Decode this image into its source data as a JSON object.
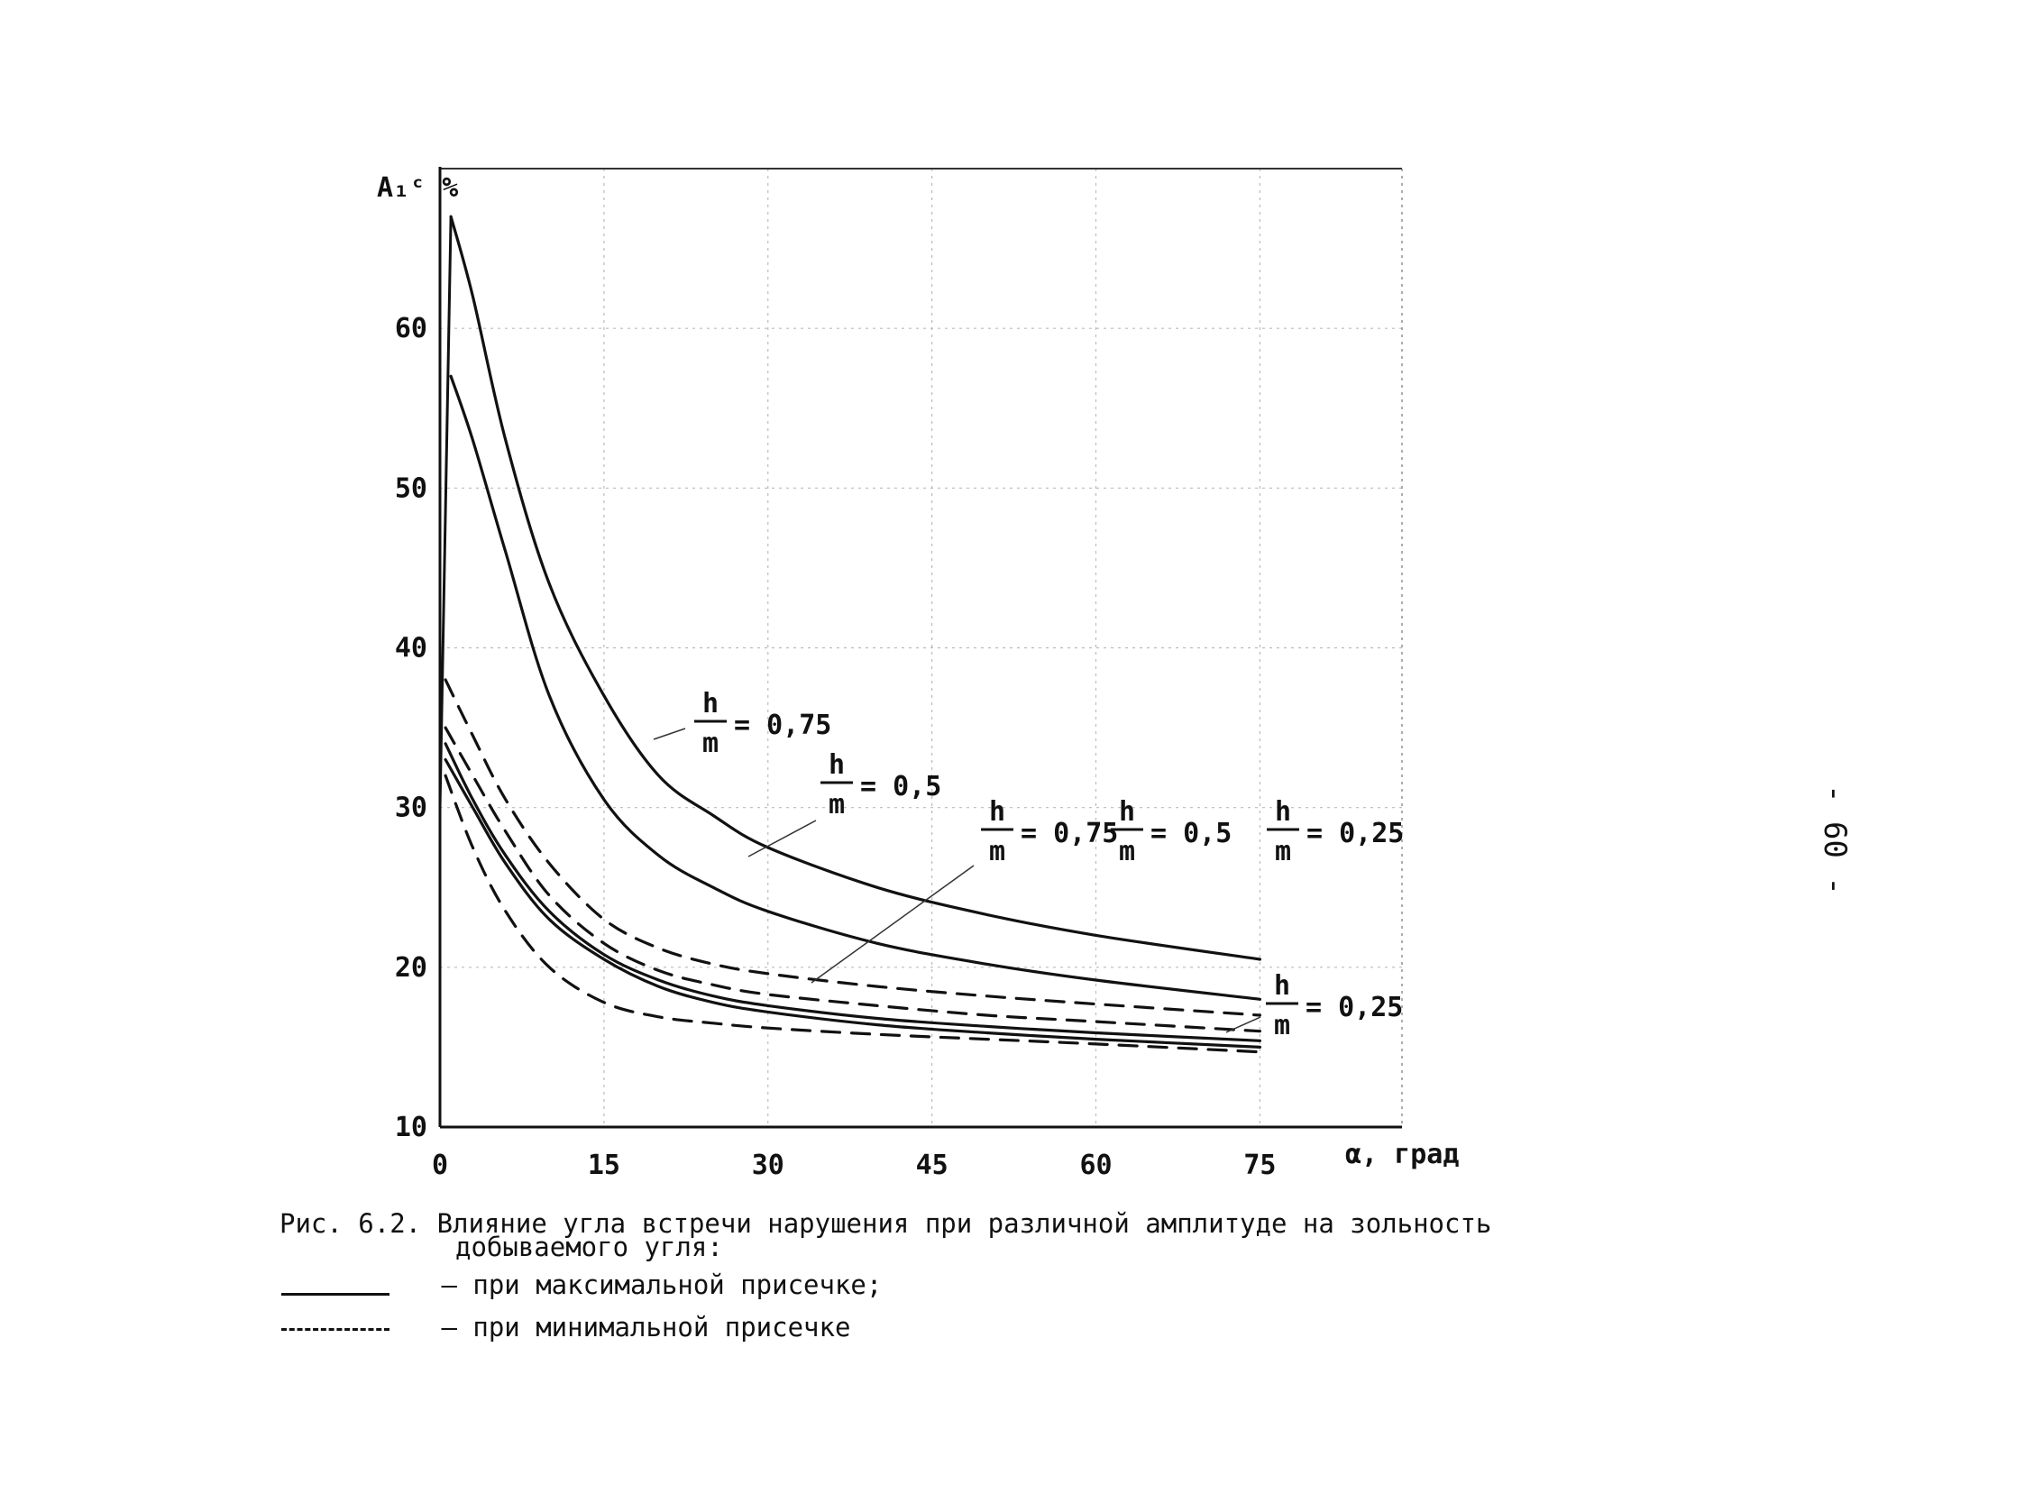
{
  "page_number": "- 60 -",
  "caption": {
    "title_line1": "Рис. 6.2. Влияние угла встречи нарушения при различной амплитуде на зольность",
    "title_line2": "добываемого угля:",
    "legend_solid": "– при максимальной присечке;",
    "legend_dashed": "– при минимальной присечке"
  },
  "chart_data": {
    "type": "line",
    "ylabel": "A₁ᶜ %",
    "xlabel": "α, град",
    "xlim": [
      0,
      88
    ],
    "ylim": [
      10,
      70
    ],
    "x_ticks": [
      "0",
      "15",
      "30",
      "45",
      "60",
      "75"
    ],
    "x_tick_values": [
      0,
      15,
      30,
      45,
      60,
      75
    ],
    "y_ticks": [
      "10",
      "20",
      "30",
      "40",
      "50",
      "60"
    ],
    "y_tick_values": [
      10,
      20,
      30,
      40,
      50,
      60
    ],
    "grid": true,
    "line_colors": {
      "solid": "#111111",
      "dashed": "#111111"
    },
    "annotations": [
      {
        "text_top": "h",
        "text_bottom": "m",
        "value": "= 0,75"
      },
      {
        "text_top": "h",
        "text_bottom": "m",
        "value": "= 0,5"
      },
      {
        "text_top": "h",
        "text_bottom": "m",
        "value": "= 0,75"
      },
      {
        "text_top": "h",
        "text_bottom": "m",
        "value": "= 0,5"
      },
      {
        "text_top": "h",
        "text_bottom": "m",
        "value": "= 0,25"
      },
      {
        "text_top": "h",
        "text_bottom": "m",
        "value": "= 0,25"
      }
    ],
    "series": [
      {
        "style": "solid",
        "x": [
          1,
          3,
          6,
          10,
          15,
          20,
          25,
          30,
          40,
          50,
          60,
          75
        ],
        "y": [
          67,
          62,
          53,
          44,
          37,
          32,
          29.5,
          27.5,
          25,
          23.3,
          22,
          20.5
        ]
      },
      {
        "style": "solid",
        "x": [
          1,
          3,
          6,
          10,
          15,
          20,
          25,
          30,
          40,
          50,
          60,
          75
        ],
        "y": [
          57,
          53,
          46,
          37,
          30.5,
          27,
          25,
          23.5,
          21.5,
          20.2,
          19.2,
          18
        ]
      },
      {
        "style": "solid",
        "x": [
          0.5,
          3,
          6,
          10,
          15,
          20,
          25,
          30,
          40,
          50,
          60,
          75
        ],
        "y": [
          34,
          30.5,
          27,
          23.5,
          20.8,
          19.2,
          18.2,
          17.6,
          16.8,
          16.3,
          15.9,
          15.4
        ]
      },
      {
        "style": "solid",
        "x": [
          0.5,
          3,
          6,
          10,
          15,
          20,
          25,
          30,
          40,
          50,
          60,
          75
        ],
        "y": [
          33,
          30,
          26.5,
          23,
          20.5,
          18.8,
          17.8,
          17.2,
          16.4,
          15.9,
          15.5,
          15
        ]
      },
      {
        "style": "dashed",
        "x": [
          0.5,
          3,
          6,
          10,
          15,
          20,
          25,
          30,
          40,
          50,
          60,
          75
        ],
        "y": [
          38,
          34.5,
          30.5,
          26.5,
          23,
          21.2,
          20.2,
          19.6,
          18.8,
          18.2,
          17.7,
          17
        ]
      },
      {
        "style": "dashed",
        "x": [
          0.5,
          3,
          6,
          10,
          15,
          20,
          25,
          30,
          40,
          50,
          60,
          75
        ],
        "y": [
          35,
          32,
          28.5,
          24.5,
          21.5,
          19.8,
          18.9,
          18.3,
          17.6,
          17,
          16.6,
          16
        ]
      },
      {
        "style": "dashed",
        "x": [
          0.5,
          3,
          6,
          10,
          15,
          20,
          25,
          30,
          40,
          50,
          60,
          75
        ],
        "y": [
          32,
          27.5,
          23.5,
          20,
          17.8,
          16.9,
          16.5,
          16.2,
          15.8,
          15.5,
          15.2,
          14.7
        ]
      }
    ]
  }
}
